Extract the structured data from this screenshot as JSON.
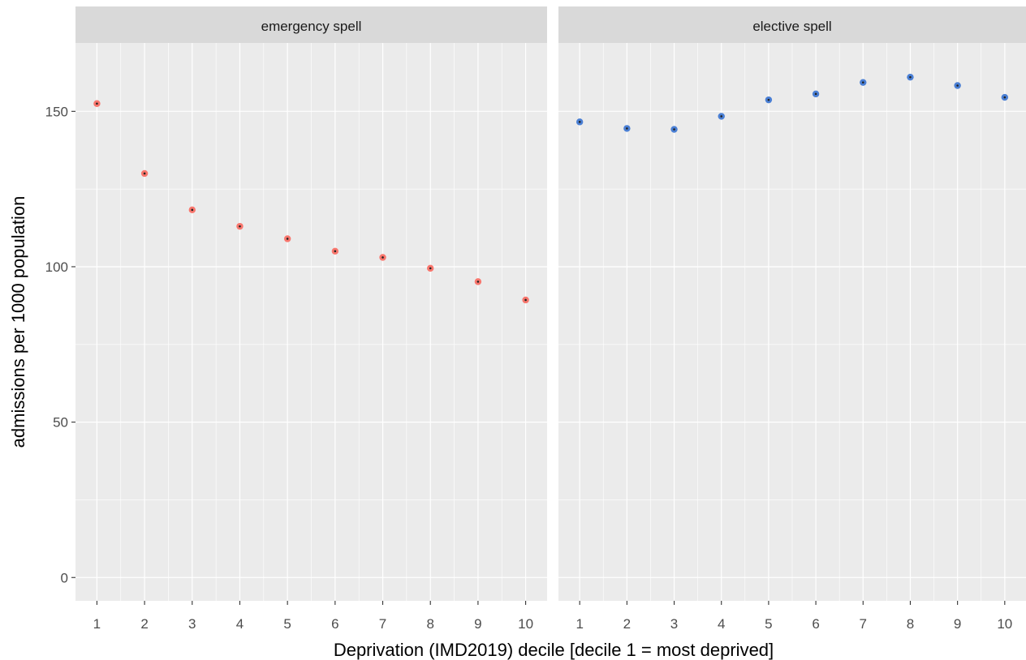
{
  "chart_data": {
    "type": "scatter",
    "xlabel": "Deprivation (IMD2019) decile  [decile 1 = most deprived]",
    "ylabel": "admissions per 1000 population",
    "x_ticks": [
      "1",
      "2",
      "3",
      "4",
      "5",
      "6",
      "7",
      "8",
      "9",
      "10"
    ],
    "y_ticks": [
      0,
      50,
      100,
      150
    ],
    "xlim": [
      0.55,
      10.45
    ],
    "ylim": [
      -7.5,
      172
    ],
    "grid": true,
    "legend": "none",
    "facets": [
      {
        "title": "emergency spell",
        "color": "#f8766d",
        "x": [
          1,
          2,
          3,
          4,
          5,
          6,
          7,
          8,
          9,
          10
        ],
        "y": [
          152.5,
          130,
          118.3,
          113,
          109,
          105,
          103,
          99.5,
          95.2,
          89.3
        ]
      },
      {
        "title": "elective spell",
        "color": "#4a7fd4",
        "x": [
          1,
          2,
          3,
          4,
          5,
          6,
          7,
          8,
          9,
          10
        ],
        "y": [
          146.6,
          144.5,
          144.2,
          148.4,
          153.7,
          155.6,
          159.3,
          161,
          158.3,
          154.5
        ]
      }
    ]
  }
}
